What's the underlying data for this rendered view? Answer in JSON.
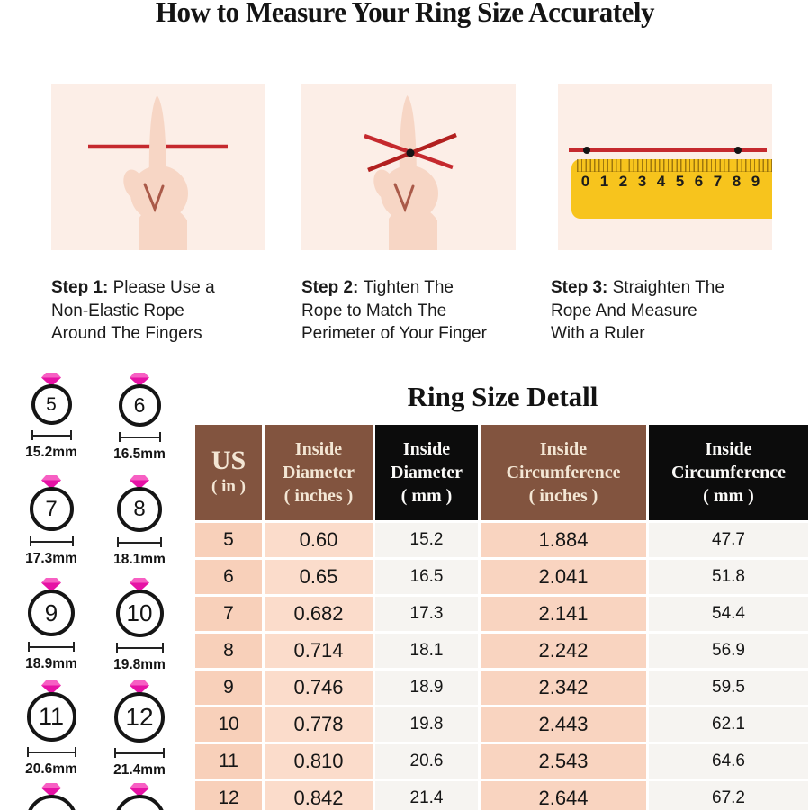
{
  "page": {
    "title": "How to Measure Your Ring Size Accurately"
  },
  "steps": [
    {
      "label": "Step 1:",
      "lines": [
        "Please Use a",
        "Non-Elastic Rope",
        "Around The Fingers"
      ],
      "image": "finger-with-rope"
    },
    {
      "label": "Step 2:",
      "lines": [
        "Tighten The",
        "Rope to Match The",
        "Perimeter of Your Finger"
      ],
      "image": "finger-with-tightened-rope"
    },
    {
      "label": "Step 3:",
      "lines": [
        "Straighten The",
        "Rope And Measure",
        "With a Ruler"
      ],
      "image": "rope-measured-on-ruler"
    }
  ],
  "ruler": {
    "numbers": [
      "0",
      "1",
      "2",
      "3",
      "4",
      "5",
      "6",
      "7",
      "8",
      "9"
    ]
  },
  "ring_size_section": {
    "title": "Ring Size Detall",
    "table": {
      "columns": [
        {
          "lines": [
            "US",
            "( in )"
          ],
          "theme": "brown"
        },
        {
          "lines": [
            "Inside",
            "Diameter",
            "( inches )"
          ],
          "theme": "brown"
        },
        {
          "lines": [
            "Inside",
            "Diameter",
            "( mm )"
          ],
          "theme": "black"
        },
        {
          "lines": [
            "Inside",
            "Circumference",
            "( inches )"
          ],
          "theme": "brown"
        },
        {
          "lines": [
            "Inside",
            "Circumference",
            "( mm )"
          ],
          "theme": "black"
        }
      ],
      "rows": [
        [
          "5",
          "0.60",
          "15.2",
          "1.884",
          "47.7"
        ],
        [
          "6",
          "0.65",
          "16.5",
          "2.041",
          "51.8"
        ],
        [
          "7",
          "0.682",
          "17.3",
          "2.141",
          "54.4"
        ],
        [
          "8",
          "0.714",
          "18.1",
          "2.242",
          "56.9"
        ],
        [
          "9",
          "0.746",
          "18.9",
          "2.342",
          "59.5"
        ],
        [
          "10",
          "0.778",
          "19.8",
          "2.443",
          "62.1"
        ],
        [
          "11",
          "0.810",
          "20.6",
          "2.543",
          "64.6"
        ],
        [
          "12",
          "0.842",
          "21.4",
          "2.644",
          "67.2"
        ]
      ]
    },
    "ring_diagrams": [
      {
        "size": "5",
        "diameter": "15.2mm",
        "partial": false
      },
      {
        "size": "6",
        "diameter": "16.5mm",
        "partial": false
      },
      {
        "size": "7",
        "diameter": "17.3mm",
        "partial": false
      },
      {
        "size": "8",
        "diameter": "18.1mm",
        "partial": false
      },
      {
        "size": "9",
        "diameter": "18.9mm",
        "partial": false
      },
      {
        "size": "10",
        "diameter": "19.8mm",
        "partial": false
      },
      {
        "size": "11",
        "diameter": "20.6mm",
        "partial": false
      },
      {
        "size": "12",
        "diameter": "21.4mm",
        "partial": false
      },
      {
        "size": "",
        "diameter": "",
        "partial": true
      },
      {
        "size": "",
        "diameter": "",
        "partial": true
      }
    ]
  },
  "colors": {
    "rope_red": "#c5292e",
    "ruler_yellow": "#f7c41d",
    "diamond_pink_light": "#f75fc3",
    "diamond_pink_dark": "#e612a5",
    "header_brown": "#82543f",
    "header_black": "#0c0c0c",
    "cell_peach": "#f9d3be",
    "cell_light": "#f6f4f1",
    "panel_background": "#fceee7"
  }
}
